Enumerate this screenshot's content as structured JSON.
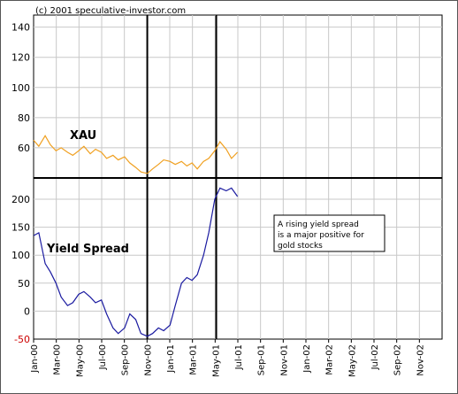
{
  "copyright": "(c) 2001 speculative-investor.com",
  "note_lines": [
    "A rising yield spread",
    "is a major positive for",
    "gold stocks"
  ],
  "colors": {
    "xau": "#f0a020",
    "spread": "#1a1aa0",
    "negative_tick": "#cc0000",
    "lines": "#000000",
    "grid": "#c8c8c8"
  },
  "chart_data": [
    {
      "type": "line",
      "title": "",
      "series": [
        {
          "name": "XAU",
          "x": [
            "2000-01-01",
            "2000-01-15",
            "2000-02-01",
            "2000-02-15",
            "2000-03-01",
            "2000-03-15",
            "2000-04-01",
            "2000-04-15",
            "2000-05-01",
            "2000-05-15",
            "2000-06-01",
            "2000-06-15",
            "2000-07-01",
            "2000-07-15",
            "2000-08-01",
            "2000-08-15",
            "2000-09-01",
            "2000-09-15",
            "2000-10-01",
            "2000-10-15",
            "2000-11-01",
            "2000-11-15",
            "2000-12-01",
            "2000-12-15",
            "2001-01-01",
            "2001-01-15",
            "2001-02-01",
            "2001-02-15",
            "2001-03-01",
            "2001-03-15",
            "2001-04-01",
            "2001-04-15",
            "2001-05-01",
            "2001-05-15",
            "2001-06-01",
            "2001-06-15",
            "2001-07-01"
          ],
          "values": [
            65,
            61,
            68,
            62,
            58,
            60,
            57,
            55,
            58,
            61,
            56,
            59,
            57,
            53,
            55,
            52,
            54,
            50,
            47,
            44,
            43,
            46,
            49,
            52,
            51,
            49,
            51,
            48,
            50,
            46,
            51,
            53,
            58,
            64,
            59,
            53,
            57
          ]
        }
      ],
      "yticks": [
        60,
        80,
        100,
        120,
        140
      ],
      "ylim": [
        40,
        148
      ]
    },
    {
      "type": "line",
      "title": "",
      "series": [
        {
          "name": "Yield Spread",
          "x": [
            "2000-01-01",
            "2000-01-15",
            "2000-02-01",
            "2000-02-15",
            "2000-03-01",
            "2000-03-15",
            "2000-04-01",
            "2000-04-15",
            "2000-05-01",
            "2000-05-15",
            "2000-06-01",
            "2000-06-15",
            "2000-07-01",
            "2000-07-15",
            "2000-08-01",
            "2000-08-15",
            "2000-09-01",
            "2000-09-15",
            "2000-10-01",
            "2000-10-15",
            "2000-11-01",
            "2000-11-15",
            "2000-12-01",
            "2000-12-15",
            "2001-01-01",
            "2001-01-15",
            "2001-02-01",
            "2001-02-15",
            "2001-03-01",
            "2001-03-15",
            "2001-04-01",
            "2001-04-15",
            "2001-05-01",
            "2001-05-15",
            "2001-06-01",
            "2001-06-15",
            "2001-07-01"
          ],
          "values": [
            135,
            140,
            85,
            70,
            50,
            25,
            10,
            15,
            30,
            35,
            25,
            15,
            20,
            -5,
            -30,
            -40,
            -30,
            -5,
            -15,
            -40,
            -45,
            -40,
            -30,
            -35,
            -25,
            10,
            50,
            60,
            55,
            65,
            100,
            140,
            200,
            220,
            215,
            220,
            205
          ]
        }
      ],
      "yticks": [
        -50,
        0,
        50,
        100,
        150,
        200
      ],
      "ylim": [
        -50,
        238
      ]
    }
  ],
  "xaxis": {
    "ticks": [
      "Jan-00",
      "Mar-00",
      "May-00",
      "Jul-00",
      "Sep-00",
      "Nov-00",
      "Jan-01",
      "Mar-01",
      "May-01",
      "Jul-01",
      "Sep-01",
      "Nov-01",
      "Jan-02",
      "Mar-02",
      "May-02",
      "Jul-02",
      "Sep-02",
      "Nov-02"
    ]
  }
}
